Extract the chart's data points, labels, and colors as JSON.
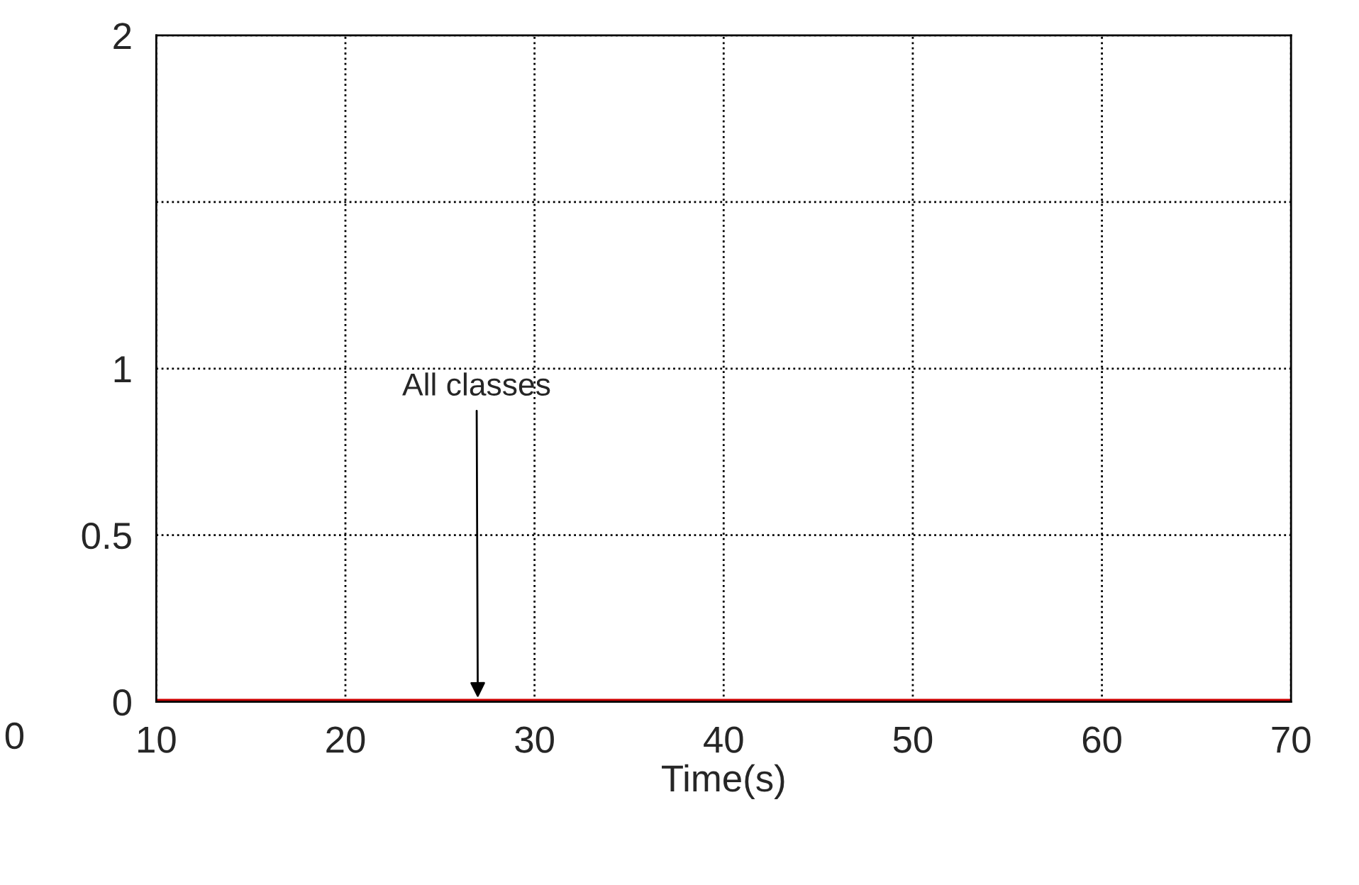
{
  "chart_data": {
    "type": "line",
    "xlabel": "Time(s)",
    "x": [
      10,
      70
    ],
    "series": [
      {
        "color": "#cc0000",
        "values": [
          0,
          0
        ]
      }
    ],
    "xlim": [
      10,
      70
    ],
    "xticks": [
      10,
      20,
      30,
      40,
      50,
      60,
      70
    ],
    "ylim": [
      0,
      2
    ],
    "yticks": [
      0,
      0.5,
      1,
      {
        "value": 1.5,
        "label": null
      },
      2
    ],
    "grid": true,
    "line_style": "solid",
    "annotations": [
      {
        "text": "All classes",
        "x": 27,
        "y": 0
      },
      "0"
    ]
  }
}
